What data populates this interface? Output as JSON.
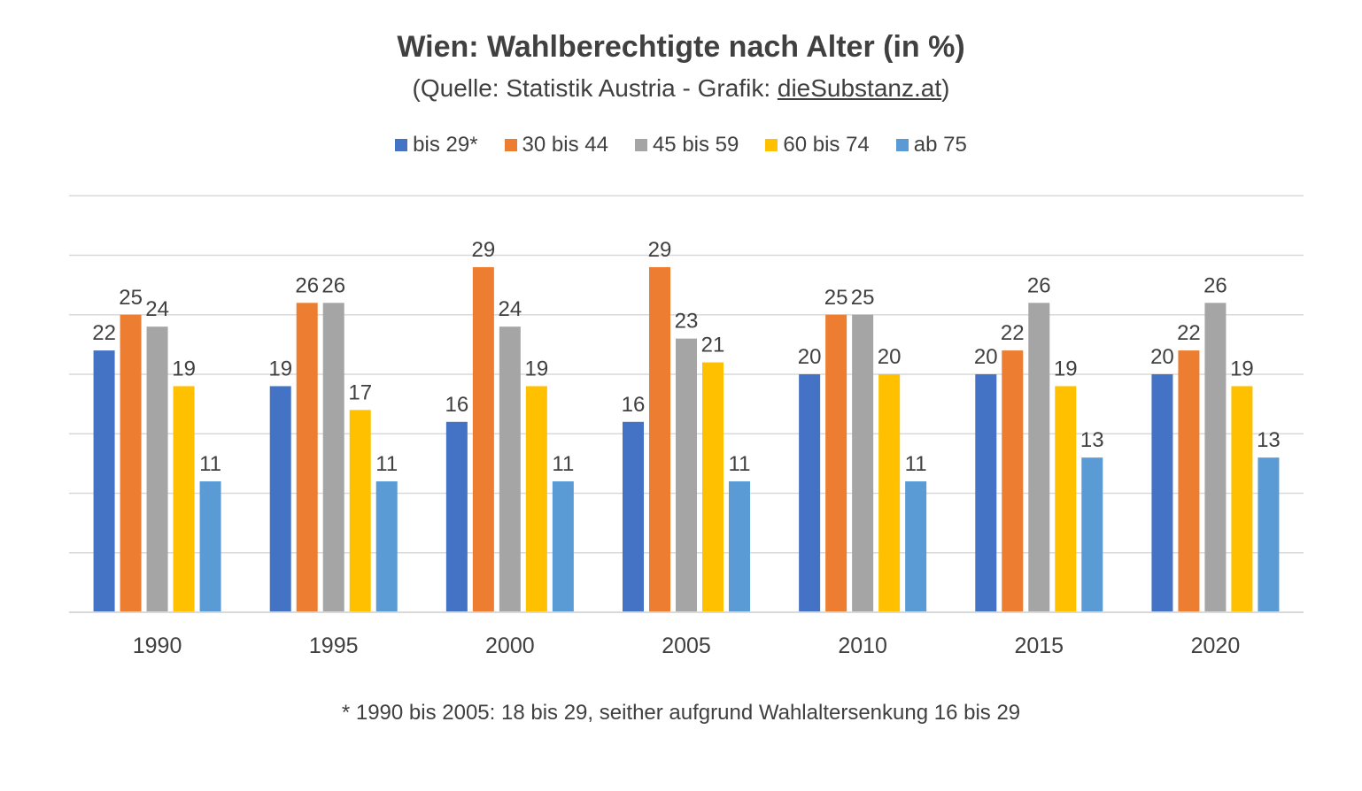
{
  "title": "Wien: Wahlberechtigte nach Alter (in %)",
  "subtitle": {
    "prefix": "(Quelle: Statistik Austria - Grafik: ",
    "link": "dieSubstanz.at",
    "suffix": ")"
  },
  "footnote": "* 1990 bis 2005: 18 bis 29, seither aufgrund Wahlaltersenkung 16 bis 29",
  "chart_data": {
    "type": "bar",
    "categories": [
      "1990",
      "1995",
      "2000",
      "2005",
      "2010",
      "2015",
      "2020"
    ],
    "series": [
      {
        "name": "bis 29*",
        "color": "#4472C4",
        "values": [
          22,
          19,
          16,
          16,
          20,
          20,
          20
        ]
      },
      {
        "name": "30 bis 44",
        "color": "#ED7D31",
        "values": [
          25,
          26,
          29,
          29,
          25,
          22,
          22
        ]
      },
      {
        "name": "45 bis 59",
        "color": "#A5A5A5",
        "values": [
          24,
          26,
          24,
          23,
          25,
          26,
          26
        ]
      },
      {
        "name": "60 bis 74",
        "color": "#FFC000",
        "values": [
          19,
          17,
          19,
          21,
          20,
          19,
          19
        ]
      },
      {
        "name": "ab 75",
        "color": "#5B9BD5",
        "values": [
          11,
          11,
          11,
          11,
          11,
          13,
          13
        ]
      }
    ],
    "ylim": [
      0,
      35
    ],
    "grid": true,
    "legend": "top-center",
    "data_labels": true
  }
}
